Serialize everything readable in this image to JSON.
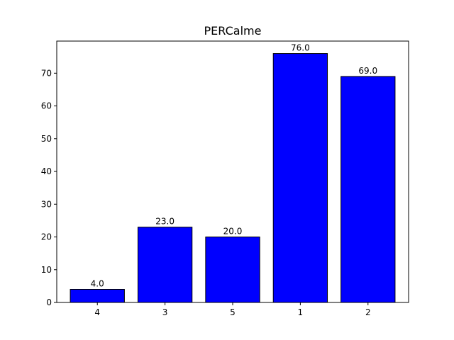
{
  "chart_data": {
    "type": "bar",
    "title": "PERCalme",
    "categories": [
      "4",
      "3",
      "5",
      "1",
      "2"
    ],
    "values": [
      4.0,
      23.0,
      20.0,
      76.0,
      69.0
    ],
    "value_labels": [
      "4.0",
      "23.0",
      "20.0",
      "76.0",
      "69.0"
    ],
    "xlabel": "",
    "ylabel": "",
    "ylim": [
      0,
      79.8
    ],
    "yticks": [
      0,
      10,
      20,
      30,
      40,
      50,
      60,
      70
    ],
    "grid": false,
    "colors": {
      "bar": "#0000ff",
      "edge": "#000000"
    }
  }
}
